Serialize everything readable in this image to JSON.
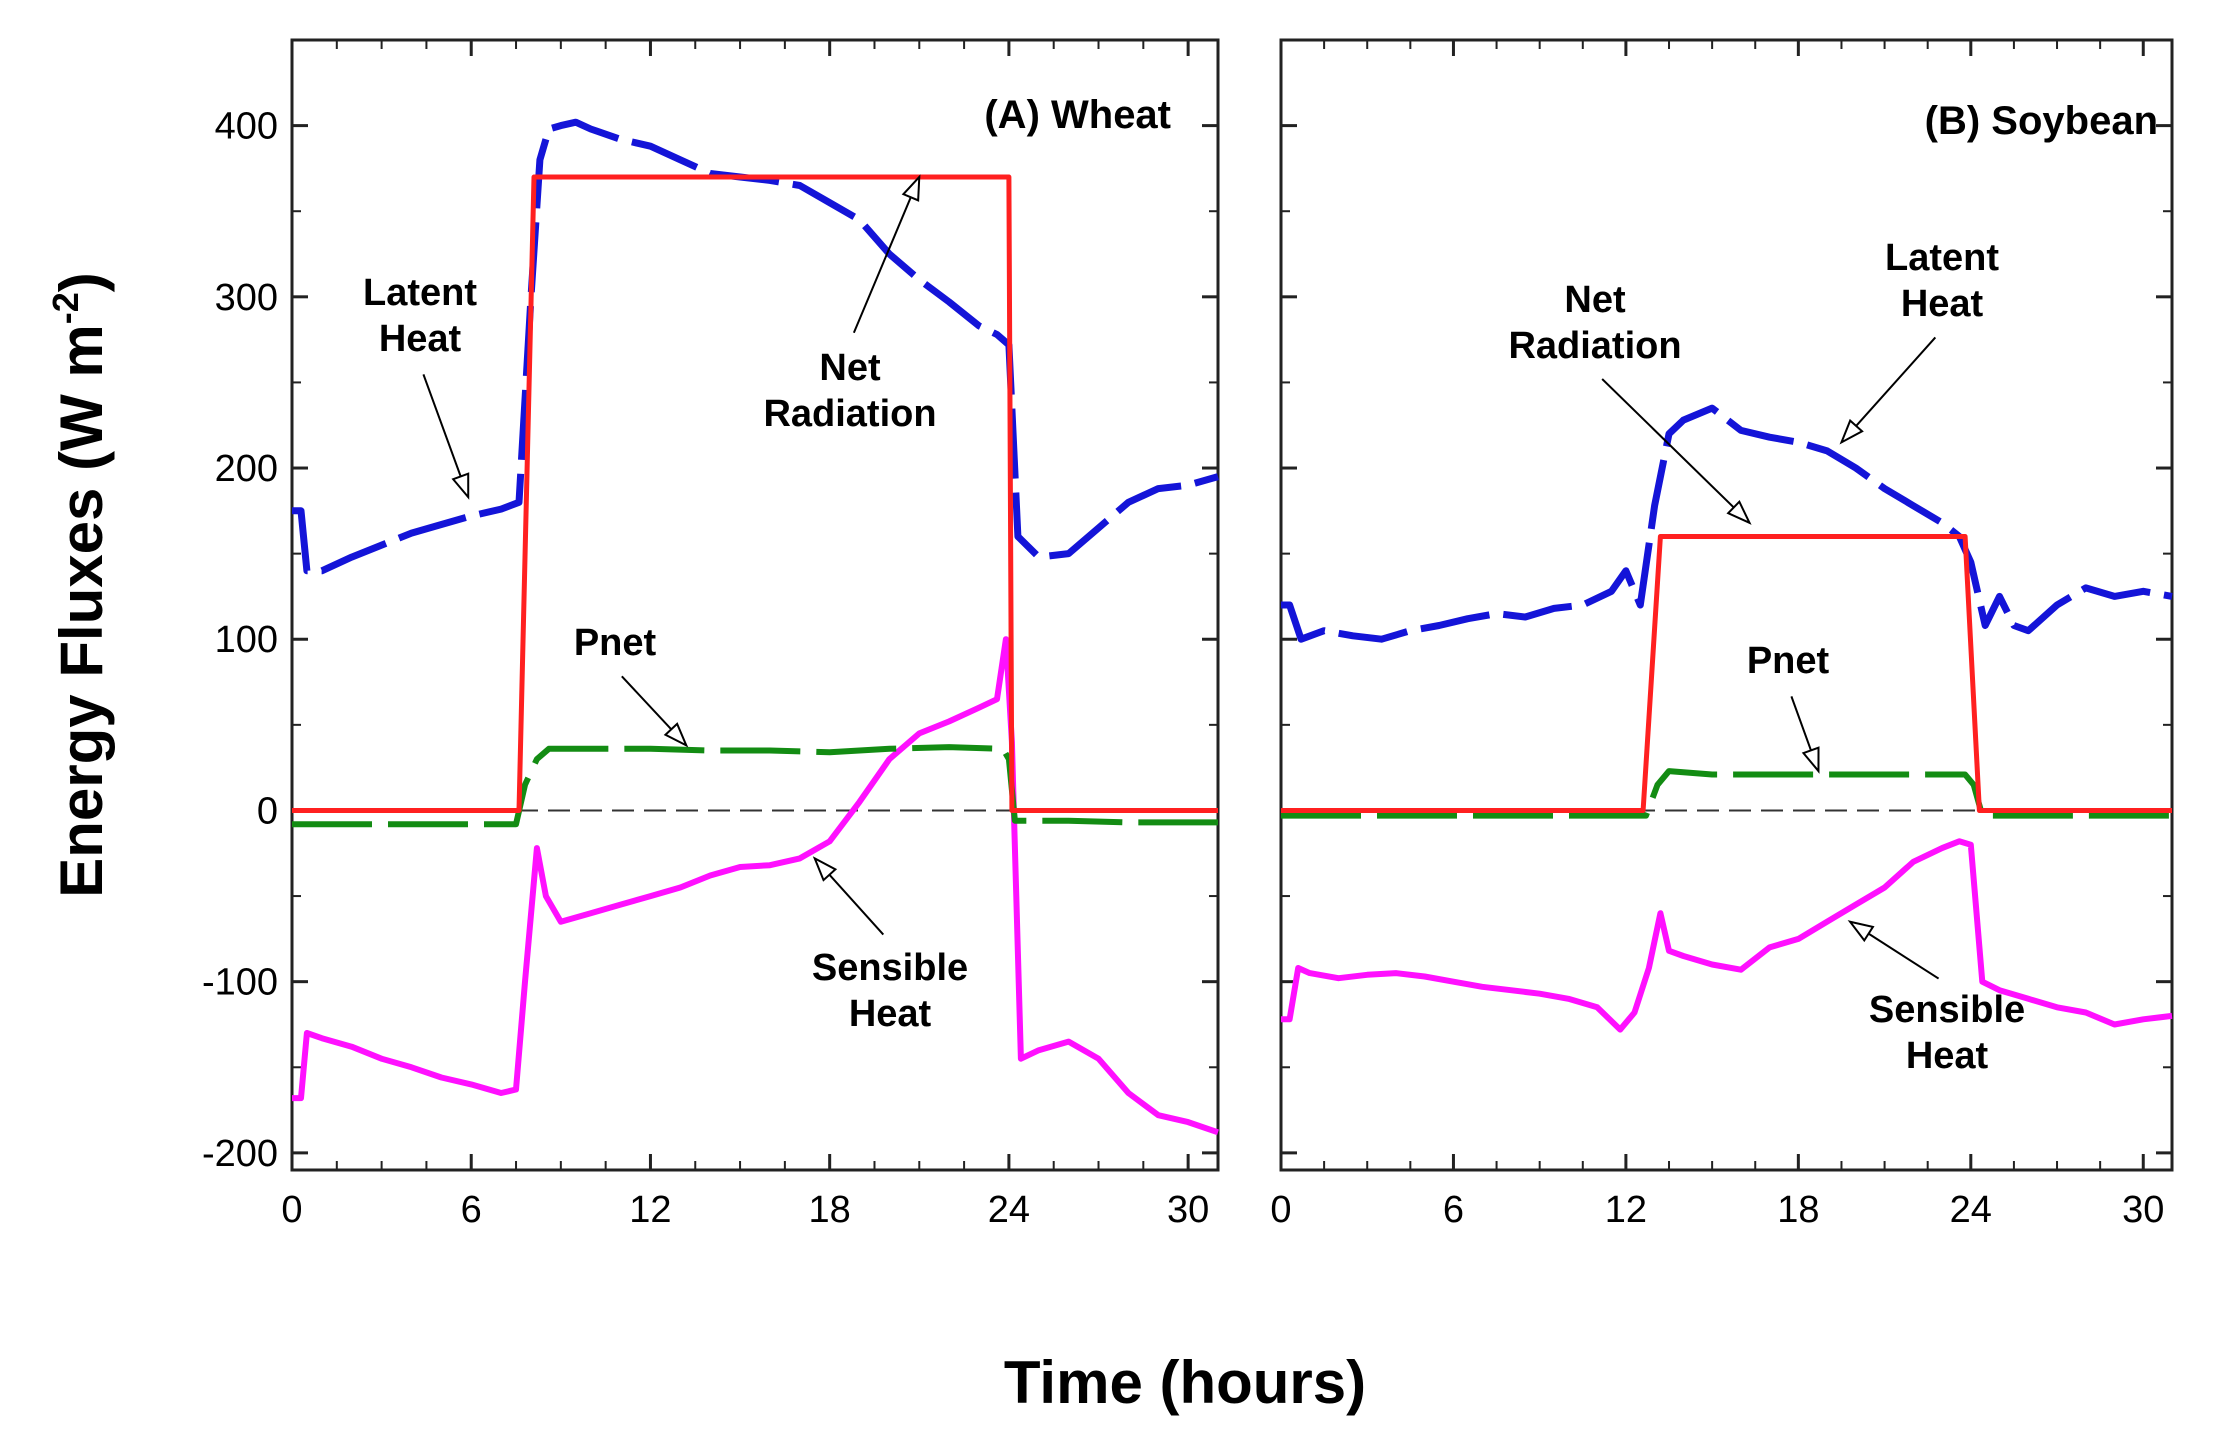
{
  "chart_data": {
    "type": "line",
    "xlabel": "Time (hours)",
    "ylabel": "Energy Fluxes (W m",
    "ylabel_unit_exponent": "-2",
    "ylabel_closing": ")",
    "shared_y_axis": true,
    "ylim": [
      -210,
      450
    ],
    "xlim": [
      0,
      31
    ],
    "yticks": [
      400,
      300,
      200,
      100,
      0,
      -100,
      -200
    ],
    "xticks": [
      0,
      6,
      12,
      18,
      24,
      30
    ],
    "panels": [
      {
        "title": "(A) Wheat",
        "annotations": [
          {
            "text": [
              "Latent",
              "Heat"
            ],
            "target_series": "Latent Heat",
            "arrow_to": [
              5.9,
              183
            ]
          },
          {
            "text": [
              "Net",
              "Radiation"
            ],
            "target_series": "Net Radiation",
            "arrow_to": [
              21.0,
              370
            ]
          },
          {
            "text": [
              "Pnet"
            ],
            "target_series": "Pnet",
            "arrow_to": [
              13.2,
              38
            ]
          },
          {
            "text": [
              "Sensible",
              "Heat"
            ],
            "target_series": "Sensible Heat",
            "arrow_to": [
              17.5,
              -28
            ]
          }
        ],
        "series": [
          {
            "name": "Net Radiation",
            "color": "#ff2020",
            "style": "solid",
            "x": [
              0,
              7.6,
              8.1,
              24.0,
              24.1,
              31
            ],
            "y": [
              0,
              0,
              370,
              370,
              0,
              0
            ]
          },
          {
            "name": "Latent Heat",
            "color": "#1414d8",
            "style": "dashed",
            "x": [
              0,
              0.3,
              0.5,
              1,
              2,
              3,
              4,
              5,
              6,
              7,
              7.6,
              8,
              8.3,
              8.6,
              9,
              9.5,
              10,
              11,
              12,
              13,
              14,
              15,
              16,
              17,
              18,
              19,
              20,
              21,
              22,
              23,
              23.6,
              24,
              24.3,
              25,
              26,
              27,
              28,
              29,
              30,
              31
            ],
            "y": [
              175,
              175,
              140,
              140,
              148,
              155,
              162,
              167,
              172,
              176,
              180,
              300,
              380,
              398,
              400,
              402,
              398,
              392,
              388,
              380,
              372,
              370,
              368,
              365,
              355,
              345,
              325,
              310,
              297,
              283,
              278,
              272,
              160,
              148,
              150,
              165,
              180,
              188,
              190,
              195
            ]
          },
          {
            "name": "Pnet",
            "color": "#138c13",
            "style": "dashed",
            "x": [
              0,
              2,
              4,
              6,
              7.5,
              7.8,
              8.2,
              8.6,
              10,
              12,
              14,
              16,
              18,
              20,
              22,
              23.8,
              24.0,
              24.2,
              26,
              28,
              31
            ],
            "y": [
              -8,
              -8,
              -8,
              -8,
              -8,
              15,
              30,
              36,
              36,
              36,
              35,
              35,
              34,
              36,
              37,
              36,
              30,
              -6,
              -6,
              -7,
              -7
            ]
          },
          {
            "name": "Sensible Heat",
            "color": "#ff10ff",
            "style": "solid",
            "x": [
              0,
              0.3,
              0.5,
              1,
              2,
              3,
              4,
              5,
              6,
              7,
              7.5,
              7.8,
              8.2,
              8.5,
              9,
              10,
              11,
              12,
              13,
              14,
              15,
              16,
              17,
              18,
              19,
              20,
              21,
              22,
              23,
              23.6,
              23.9,
              24.1,
              24.4,
              25,
              26,
              27,
              28,
              29,
              30,
              31
            ],
            "y": [
              -168,
              -168,
              -130,
              -133,
              -138,
              -145,
              -150,
              -156,
              -160,
              -165,
              -163,
              -100,
              -22,
              -50,
              -65,
              -60,
              -55,
              -50,
              -45,
              -38,
              -33,
              -32,
              -28,
              -18,
              5,
              30,
              45,
              52,
              60,
              65,
              100,
              40,
              -145,
              -140,
              -135,
              -145,
              -165,
              -178,
              -182,
              -188
            ]
          }
        ]
      },
      {
        "title": "(B) Soybean",
        "annotations": [
          {
            "text": [
              "Latent",
              "Heat"
            ],
            "target_series": "Latent Heat",
            "arrow_to": [
              19.5,
              215
            ]
          },
          {
            "text": [
              "Net",
              "Radiation"
            ],
            "target_series": "Net Radiation",
            "arrow_to": [
              16.3,
              168
            ]
          },
          {
            "text": [
              "Pnet"
            ],
            "target_series": "Pnet",
            "arrow_to": [
              18.7,
              23
            ]
          },
          {
            "text": [
              "Sensible",
              "Heat"
            ],
            "target_series": "Sensible Heat",
            "arrow_to": [
              19.8,
              -65
            ]
          }
        ],
        "series": [
          {
            "name": "Net Radiation",
            "color": "#ff2020",
            "style": "solid",
            "x": [
              0,
              12.6,
              13.2,
              23.8,
              24.3,
              31
            ],
            "y": [
              0,
              0,
              160,
              160,
              0,
              0
            ]
          },
          {
            "name": "Latent Heat",
            "color": "#1414d8",
            "style": "dashed",
            "x": [
              0,
              0.3,
              0.7,
              1.5,
              2.5,
              3.5,
              4.5,
              5.5,
              6.5,
              7.5,
              8.5,
              9.5,
              10.5,
              11.5,
              12,
              12.5,
              13,
              13.5,
              14,
              15,
              16,
              17,
              18,
              19,
              20,
              21,
              22,
              23,
              23.6,
              24,
              24.5,
              25,
              25.5,
              26,
              27,
              28,
              29,
              30,
              31
            ],
            "y": [
              120,
              120,
              100,
              105,
              102,
              100,
              105,
              108,
              112,
              115,
              113,
              118,
              120,
              128,
              140,
              120,
              178,
              220,
              228,
              235,
              222,
              218,
              215,
              210,
              200,
              188,
              178,
              168,
              160,
              145,
              108,
              125,
              108,
              105,
              120,
              130,
              125,
              128,
              125
            ]
          },
          {
            "name": "Pnet",
            "color": "#138c13",
            "style": "dashed",
            "x": [
              0,
              3,
              6,
              9,
              12,
              12.7,
              13.1,
              13.5,
              15,
              18,
              21,
              23.8,
              24.1,
              24.4,
              27,
              31
            ],
            "y": [
              -3,
              -3,
              -3,
              -3,
              -3,
              -3,
              15,
              23,
              21,
              21,
              21,
              21,
              15,
              -3,
              -3,
              -3
            ]
          },
          {
            "name": "Sensible Heat",
            "color": "#ff10ff",
            "style": "solid",
            "x": [
              0,
              0.3,
              0.6,
              1,
              2,
              3,
              4,
              5,
              6,
              7,
              8,
              9,
              10,
              11,
              11.8,
              12.3,
              12.8,
              13.2,
              13.5,
              14,
              15,
              16,
              17,
              18,
              19,
              20,
              21,
              22,
              23,
              23.6,
              24,
              24.4,
              25,
              26,
              27,
              28,
              29,
              30,
              31
            ],
            "y": [
              -122,
              -122,
              -92,
              -95,
              -98,
              -96,
              -95,
              -97,
              -100,
              -103,
              -105,
              -107,
              -110,
              -115,
              -128,
              -118,
              -92,
              -60,
              -82,
              -85,
              -90,
              -93,
              -80,
              -75,
              -65,
              -55,
              -45,
              -30,
              -22,
              -18,
              -20,
              -100,
              -105,
              -110,
              -115,
              -118,
              -125,
              -122,
              -120
            ]
          }
        ]
      }
    ]
  }
}
